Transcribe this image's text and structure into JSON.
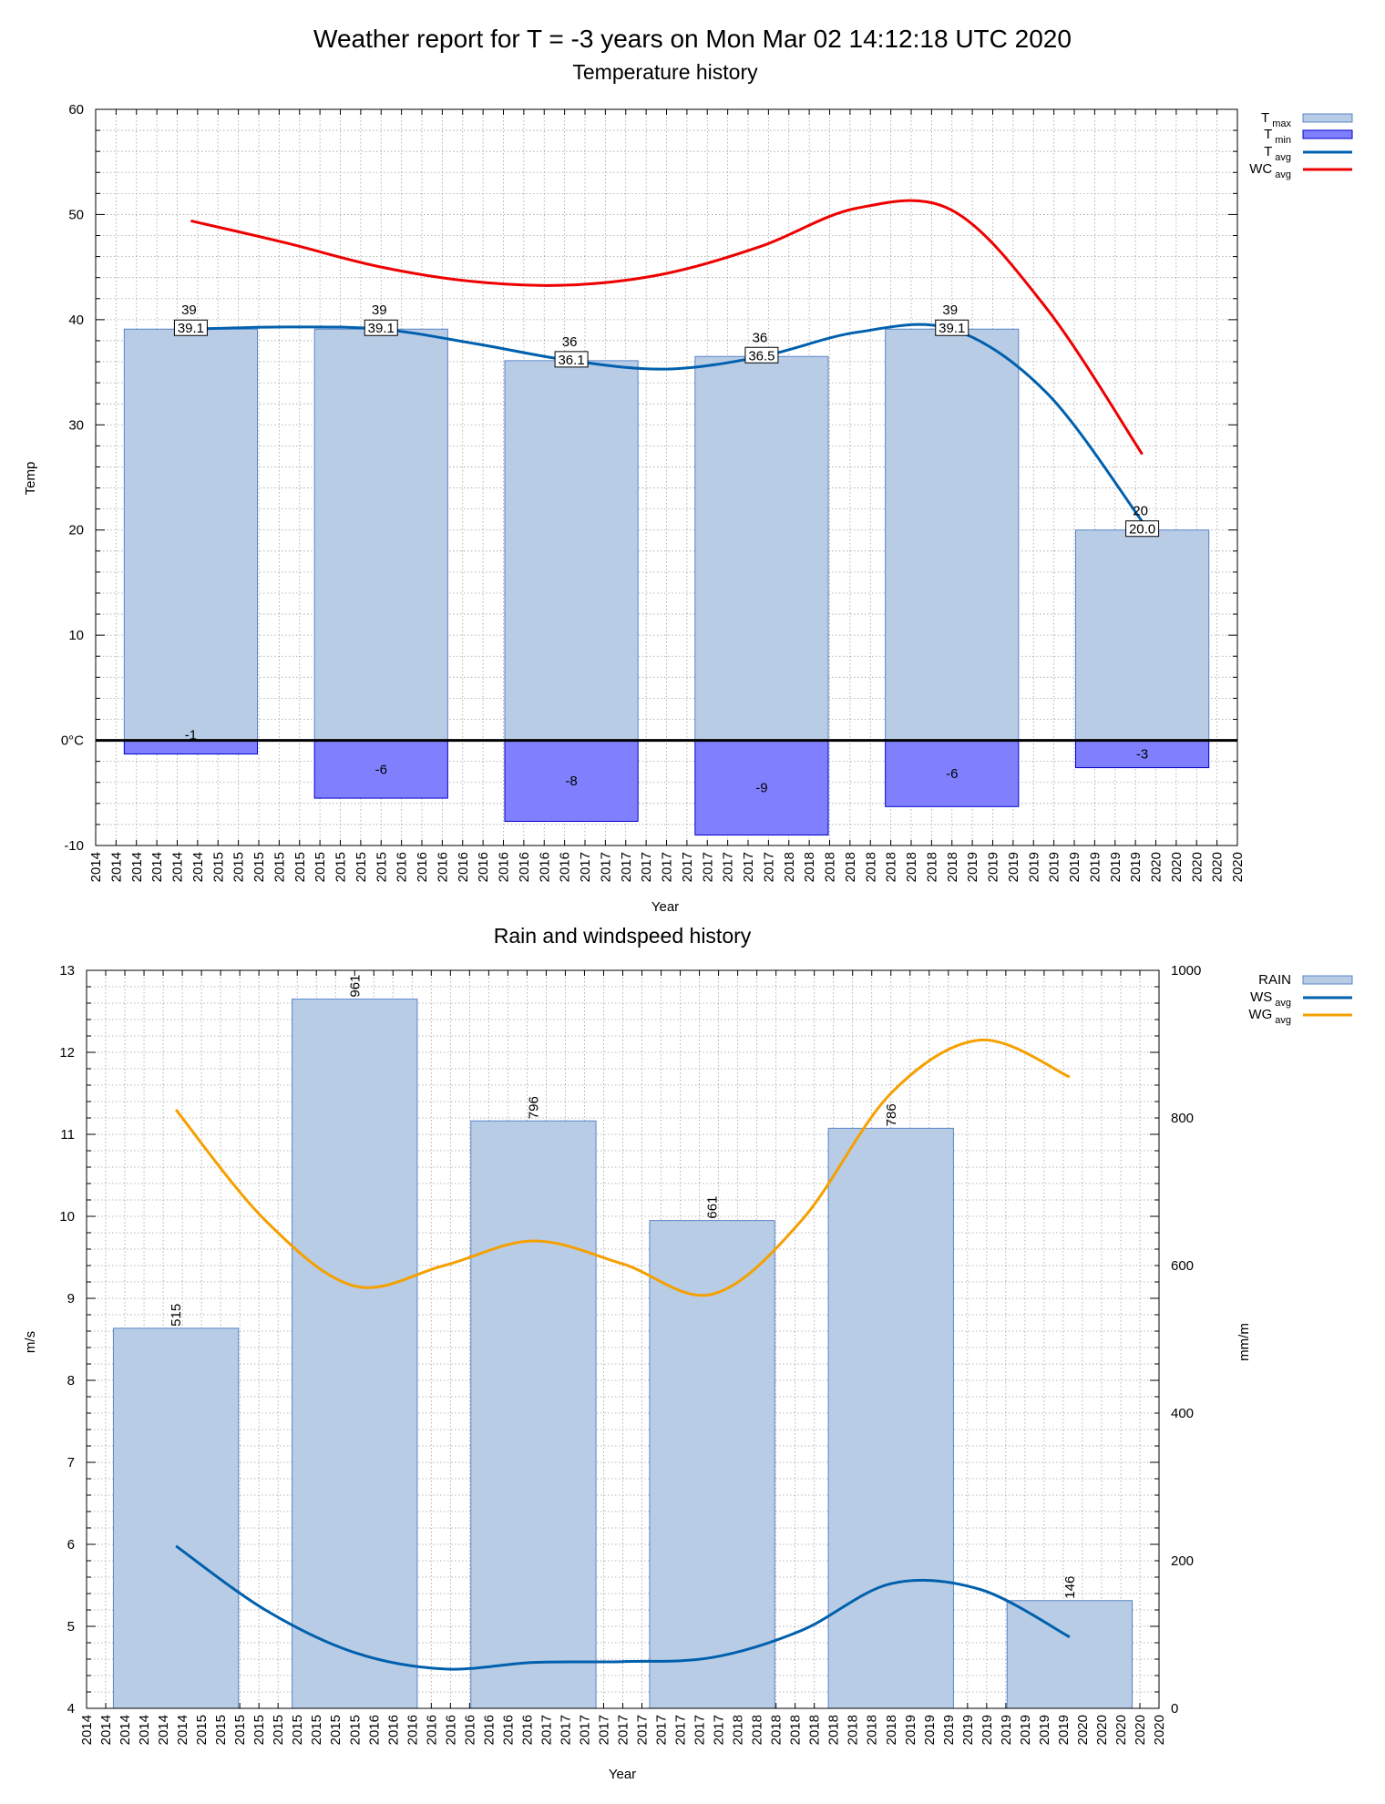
{
  "page": {
    "title": "Weather report for T = -3 years on Mon Mar 02 14:12:18 UTC 2020"
  },
  "chart_data": [
    {
      "type": "bar",
      "title": "Temperature history",
      "xlabel": "Year",
      "ylabel": "Temp",
      "ylim": [
        -10,
        60
      ],
      "yticks": [
        "60",
        "50",
        "40",
        "30",
        "20",
        "10",
        "0°C",
        "-10"
      ],
      "zero_label": "0°C",
      "grid": true,
      "legend_placement": "right",
      "x_tick_labels": [
        "2014",
        "2014",
        "2014",
        "2014",
        "2014",
        "2014",
        "2015",
        "2015",
        "2015",
        "2015",
        "2015",
        "2015",
        "2015",
        "2015",
        "2015",
        "2016",
        "2016",
        "2016",
        "2016",
        "2016",
        "2016",
        "2016",
        "2016",
        "2016",
        "2017",
        "2017",
        "2017",
        "2017",
        "2017",
        "2017",
        "2017",
        "2017",
        "2017",
        "2017",
        "2018",
        "2018",
        "2018",
        "2018",
        "2018",
        "2018",
        "2018",
        "2018",
        "2018",
        "2019",
        "2019",
        "2019",
        "2019",
        "2019",
        "2019",
        "2019",
        "2019",
        "2019",
        "2020",
        "2020",
        "2020",
        "2020",
        "2020"
      ],
      "categories": [
        "2015",
        "2016",
        "2017",
        "2017",
        "2018",
        "2020"
      ],
      "tmax": {
        "legend": "T",
        "legend_sub": "max",
        "color": "#b8cce6",
        "values": [
          39.1,
          39.1,
          36.1,
          36.5,
          39.1,
          20.0
        ],
        "top_labels": [
          "39",
          "39",
          "36",
          "36",
          "39",
          "20"
        ],
        "box_labels": [
          "39.1",
          "39.1",
          "36.1",
          "36.5",
          "39.1",
          "20.0"
        ]
      },
      "tmin": {
        "legend": "T",
        "legend_sub": "min",
        "color": "#8080ff",
        "values": [
          -1.3,
          -5.5,
          -7.7,
          -9.0,
          -6.3,
          -2.6
        ],
        "labels": [
          "-1",
          "-6",
          "-8",
          "-9",
          "-6",
          "-3"
        ]
      },
      "tavg": {
        "legend": "T",
        "legend_sub": "avg",
        "color": "#0060ad",
        "points": [
          [
            0,
            39.1
          ],
          [
            0.5,
            39.3
          ],
          [
            1,
            39.1
          ],
          [
            1.5,
            37.7
          ],
          [
            2,
            36.1
          ],
          [
            2.5,
            35.3
          ],
          [
            3,
            36.5
          ],
          [
            3.5,
            38.8
          ],
          [
            4,
            39.1
          ],
          [
            4.5,
            33.0
          ],
          [
            5,
            20.8
          ]
        ]
      },
      "wcavg": {
        "legend": "WC",
        "legend_sub": "avg",
        "color": "#ee0000",
        "points": [
          [
            0,
            49.4
          ],
          [
            0.5,
            47.3
          ],
          [
            1,
            45.0
          ],
          [
            1.5,
            43.6
          ],
          [
            2,
            43.3
          ],
          [
            2.5,
            44.4
          ],
          [
            3,
            47.0
          ],
          [
            3.5,
            50.6
          ],
          [
            4,
            50.4
          ],
          [
            4.5,
            41.0
          ],
          [
            5,
            27.2
          ]
        ]
      }
    },
    {
      "type": "bar",
      "title": "Rain and windspeed history",
      "xlabel": "Year",
      "ylabel": "m/s",
      "y2label": "mm/m",
      "ylim": [
        4,
        13
      ],
      "y2lim": [
        0,
        1000
      ],
      "yticks": [
        "13",
        "12",
        "11",
        "10",
        "9",
        "8",
        "7",
        "6",
        "5",
        "4"
      ],
      "y2ticks": [
        "1000",
        "800",
        "600",
        "400",
        "200",
        "0"
      ],
      "grid": true,
      "legend_placement": "right",
      "x_tick_labels": [
        "2014",
        "2014",
        "2014",
        "2014",
        "2014",
        "2014",
        "2015",
        "2015",
        "2015",
        "2015",
        "2015",
        "2015",
        "2015",
        "2015",
        "2015",
        "2016",
        "2016",
        "2016",
        "2016",
        "2016",
        "2016",
        "2016",
        "2016",
        "2016",
        "2017",
        "2017",
        "2017",
        "2017",
        "2017",
        "2017",
        "2017",
        "2017",
        "2017",
        "2017",
        "2018",
        "2018",
        "2018",
        "2018",
        "2018",
        "2018",
        "2018",
        "2018",
        "2018",
        "2019",
        "2019",
        "2019",
        "2019",
        "2019",
        "2019",
        "2019",
        "2019",
        "2019",
        "2020",
        "2020",
        "2020",
        "2020",
        "2020"
      ],
      "rain": {
        "legend": "RAIN",
        "color": "#b8cce6",
        "values": [
          515,
          961,
          796,
          661,
          786,
          146
        ],
        "labels": [
          "515",
          "961",
          "796",
          "661",
          "786",
          "146"
        ]
      },
      "wsavg": {
        "legend": "WS",
        "legend_sub": "avg",
        "color": "#0060ad",
        "points": [
          [
            0,
            5.98
          ],
          [
            0.5,
            5.2
          ],
          [
            1,
            4.68
          ],
          [
            1.5,
            4.48
          ],
          [
            2,
            4.56
          ],
          [
            2.5,
            4.57
          ],
          [
            3,
            4.62
          ],
          [
            3.5,
            4.95
          ],
          [
            4,
            5.52
          ],
          [
            4.5,
            5.45
          ],
          [
            5,
            4.87
          ]
        ]
      },
      "wgavg": {
        "legend": "WG",
        "legend_sub": "avg",
        "color": "#f5a000",
        "points": [
          [
            0,
            11.3
          ],
          [
            0.5,
            9.95
          ],
          [
            1,
            9.15
          ],
          [
            1.5,
            9.4
          ],
          [
            2,
            9.7
          ],
          [
            2.5,
            9.42
          ],
          [
            3,
            9.05
          ],
          [
            3.5,
            9.95
          ],
          [
            4,
            11.5
          ],
          [
            4.5,
            12.15
          ],
          [
            5,
            11.7
          ]
        ]
      }
    }
  ]
}
